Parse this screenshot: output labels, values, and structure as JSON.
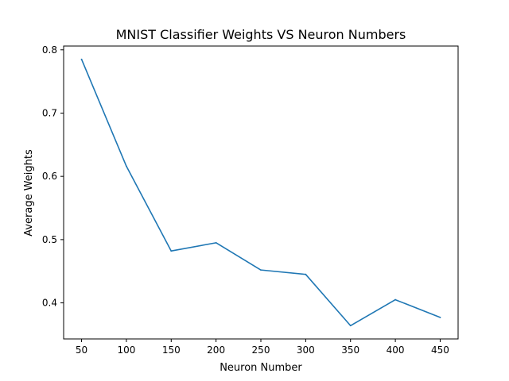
{
  "chart_data": {
    "type": "line",
    "title": "MNIST Classifier Weights VS Neuron Numbers",
    "xlabel": "Neuron Number",
    "ylabel": "Average Weights",
    "x": [
      50,
      100,
      150,
      200,
      250,
      300,
      350,
      400,
      450
    ],
    "series": [
      {
        "values": [
          0.785,
          0.616,
          0.482,
          0.495,
          0.452,
          0.445,
          0.364,
          0.405,
          0.377
        ],
        "color": "#1f77b4"
      }
    ],
    "xticks": [
      50,
      100,
      150,
      200,
      250,
      300,
      350,
      400,
      450
    ],
    "yticks": [
      0.4,
      0.5,
      0.6,
      0.7,
      0.8
    ],
    "xlim": [
      30,
      470
    ],
    "ylim": [
      0.343,
      0.806
    ],
    "grid": false,
    "legend": "none"
  }
}
